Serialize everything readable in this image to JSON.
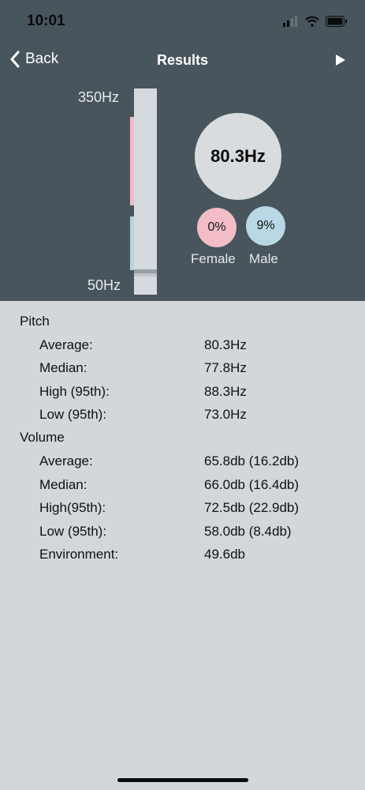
{
  "status": {
    "time": "10:01"
  },
  "nav": {
    "back_label": "Back",
    "title": "Results"
  },
  "meter": {
    "top_label": "350Hz",
    "bottom_label": "50Hz"
  },
  "summary": {
    "average_pitch": "80.3Hz",
    "female_percent": "0%",
    "male_percent": "9%",
    "female_label": "Female",
    "male_label": "Male"
  },
  "pitch": {
    "title": "Pitch",
    "rows": [
      {
        "label": "Average:",
        "value": "80.3Hz"
      },
      {
        "label": "Median:",
        "value": "77.8Hz"
      },
      {
        "label": "High (95th):",
        "value": "88.3Hz"
      },
      {
        "label": "Low (95th):",
        "value": "73.0Hz"
      }
    ]
  },
  "volume": {
    "title": "Volume",
    "rows": [
      {
        "label": "Average:",
        "value": "65.8db (16.2db)"
      },
      {
        "label": "Median:",
        "value": "66.0db (16.4db)"
      },
      {
        "label": "High(95th):",
        "value": "72.5db (22.9db)"
      },
      {
        "label": "Low (95th):",
        "value": "58.0db (8.4db)"
      },
      {
        "label": "Environment:",
        "value": "49.6db"
      }
    ]
  },
  "colors": {
    "header_bg": "#48555d",
    "body_bg": "#d1d7db",
    "female": "#f2bdc7",
    "male": "#b9d7e4"
  }
}
